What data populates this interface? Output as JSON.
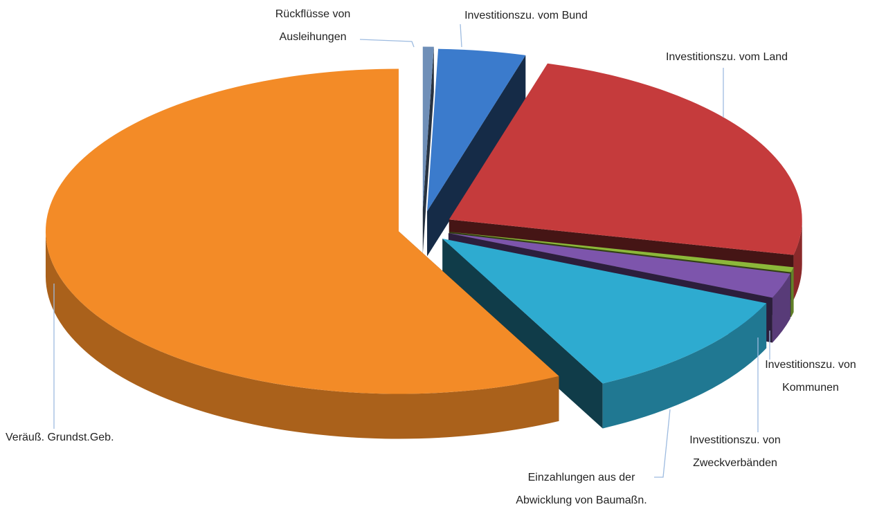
{
  "chart_data": {
    "type": "pie",
    "categories": [
      "Rückflüsse von Ausleihungen",
      "Investitionszu. vom Bund",
      "Investitionszu. vom Land",
      "Investitionszu. von Kommunen",
      "Investitionszu. von Zweckverbänden",
      "Einzahlungen aus der Abwicklung von Baumaßn.",
      "Veräuß. Grundst.Geb."
    ],
    "values": [
      0.5,
      4,
      24,
      0.5,
      2.5,
      11,
      57.5
    ],
    "colors": [
      "#6f8fb8",
      "#3b7bcc",
      "#c53b3c",
      "#8cb83a",
      "#7d55ac",
      "#2eabd0",
      "#f38b27"
    ]
  }
}
